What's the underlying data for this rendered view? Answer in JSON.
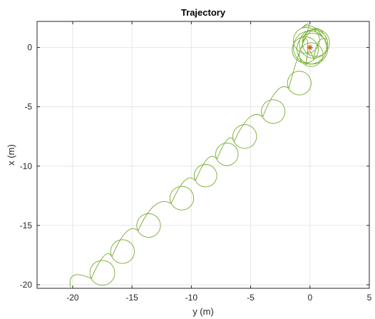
{
  "chart_data": {
    "type": "line",
    "title": "Trajectory",
    "xlabel": "y (m)",
    "ylabel": "x (m)",
    "xlim": [
      -23,
      5
    ],
    "ylim": [
      -20.3,
      2.2
    ],
    "xticks": [
      -20,
      -15,
      -10,
      -5,
      0,
      5
    ],
    "yticks": [
      -20,
      -15,
      -10,
      -5,
      0
    ],
    "xtick_labels": [
      "-20",
      "-15",
      "-10",
      "-5",
      "0",
      "5"
    ],
    "ytick_labels": [
      "-20",
      "-15",
      "-10",
      "-5",
      "0"
    ],
    "grid": true,
    "series": [
      {
        "color": "#77AC30",
        "description": "Looping path from start near (-20, -20) to target at origin; loop centers and radii in data units",
        "path_start": [
          -20.2,
          -20.2
        ],
        "loops": [
          {
            "cx": -17.5,
            "cy": -19.0,
            "r": 1.05
          },
          {
            "cx": -15.8,
            "cy": -17.2,
            "r": 1.0
          },
          {
            "cx": -13.6,
            "cy": -15.0,
            "r": 1.0
          },
          {
            "cx": -10.8,
            "cy": -12.7,
            "r": 1.0
          },
          {
            "cx": -8.8,
            "cy": -10.8,
            "r": 0.95
          },
          {
            "cx": -7.0,
            "cy": -9.0,
            "r": 0.95
          },
          {
            "cx": -5.5,
            "cy": -7.5,
            "r": 1.0
          },
          {
            "cx": -3.1,
            "cy": -5.4,
            "r": 1.0
          },
          {
            "cx": -0.9,
            "cy": -3.0,
            "r": 1.0
          },
          {
            "cx": 0.0,
            "cy": 0.0,
            "r": 1.4
          },
          {
            "cx": 0.3,
            "cy": 0.3,
            "r": 1.2
          },
          {
            "cx": -0.4,
            "cy": -0.2,
            "r": 1.1
          },
          {
            "cx": 0.1,
            "cy": -0.6,
            "r": 1.0
          },
          {
            "cx": 0.5,
            "cy": 0.4,
            "r": 1.15
          },
          {
            "cx": -0.3,
            "cy": 0.6,
            "r": 1.1
          },
          {
            "cx": 0.2,
            "cy": -0.1,
            "r": 1.3
          }
        ]
      }
    ],
    "marker": {
      "x": 0,
      "y": 0,
      "symbol": "*",
      "color": "#D95319"
    }
  }
}
